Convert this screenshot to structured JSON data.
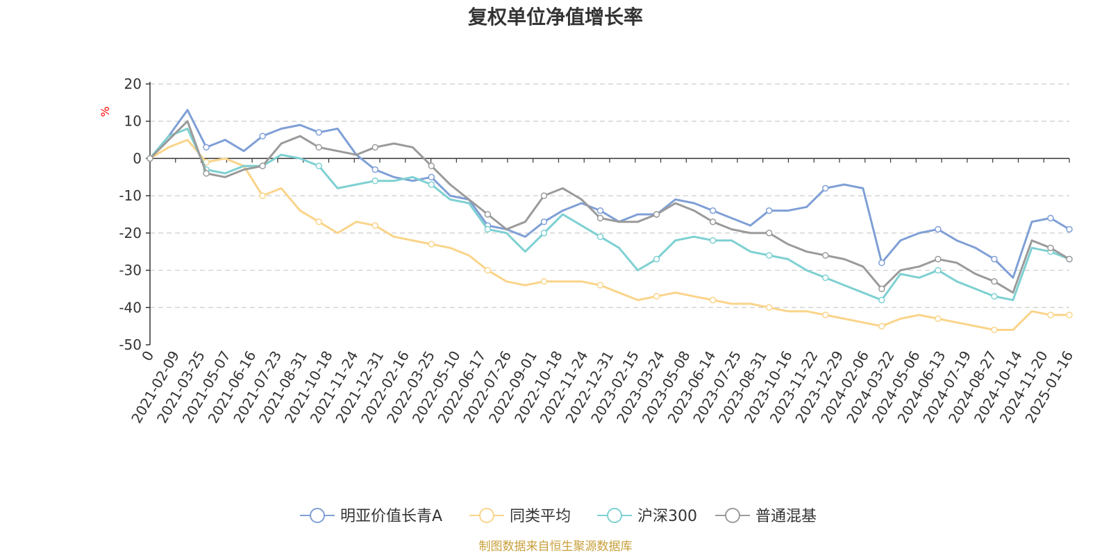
{
  "chart_data": {
    "type": "line",
    "title": "复权单位净值增长率",
    "y_unit": "%",
    "ylim": [
      -50,
      20
    ],
    "y_ticks": [
      20,
      10,
      0,
      -10,
      -20,
      -30,
      -40,
      -50
    ],
    "x_tick_labels": [
      "0",
      "2021-02-09",
      "2021-03-25",
      "2021-05-07",
      "2021-06-16",
      "2021-07-23",
      "2021-08-31",
      "2021-10-18",
      "2021-11-24",
      "2021-12-31",
      "2022-02-16",
      "2022-03-25",
      "2022-05-10",
      "2022-06-17",
      "2022-07-26",
      "2022-09-01",
      "2022-10-18",
      "2022-11-24",
      "2022-12-31",
      "2023-02-15",
      "2023-03-24",
      "2023-05-08",
      "2023-06-14",
      "2023-07-25",
      "2023-08-31",
      "2023-10-16",
      "2023-11-22",
      "2023-12-29",
      "2024-02-06",
      "2024-03-22",
      "2024-05-06",
      "2024-06-13",
      "2024-07-19",
      "2024-08-27",
      "2024-10-14",
      "2024-11-20",
      "2025-01-16"
    ],
    "grid": "horizontal-dashed",
    "legend_position": "bottom",
    "series": [
      {
        "name": "明亚价值长青A",
        "color": "#7f9fd6",
        "values": [
          0,
          6,
          13,
          3,
          5,
          2,
          6,
          8,
          9,
          7,
          8,
          1,
          -3,
          -5,
          -6,
          -5,
          -10,
          -11,
          -18,
          -19,
          -21,
          -17,
          -14,
          -12,
          -14,
          -17,
          -15,
          -15,
          -11,
          -12,
          -14,
          -16,
          -18,
          -14,
          -14,
          -13,
          -8,
          -7,
          -8,
          -28,
          -22,
          -20,
          -19,
          -22,
          -24,
          -27,
          -32,
          -17,
          -16,
          -19
        ]
      },
      {
        "name": "同类平均",
        "color": "#fad48a",
        "values": [
          0,
          3,
          5,
          -1,
          0,
          -2,
          -10,
          -8,
          -14,
          -17,
          -20,
          -17,
          -18,
          -21,
          -22,
          -23,
          -24,
          -26,
          -30,
          -33,
          -34,
          -33,
          -33,
          -33,
          -34,
          -36,
          -38,
          -37,
          -36,
          -37,
          -38,
          -39,
          -39,
          -40,
          -41,
          -41,
          -42,
          -43,
          -44,
          -45,
          -43,
          -42,
          -43,
          -44,
          -45,
          -46,
          -46,
          -41,
          -42,
          -42
        ]
      },
      {
        "name": "沪深300",
        "color": "#7ed0d2",
        "values": [
          0,
          6,
          8,
          -3,
          -4,
          -2,
          -2,
          1,
          0,
          -2,
          -8,
          -7,
          -6,
          -6,
          -5,
          -7,
          -11,
          -12,
          -19,
          -20,
          -25,
          -20,
          -15,
          -18,
          -21,
          -24,
          -30,
          -27,
          -22,
          -21,
          -22,
          -22,
          -25,
          -26,
          -27,
          -30,
          -32,
          -34,
          -36,
          -38,
          -31,
          -32,
          -30,
          -33,
          -35,
          -37,
          -38,
          -24,
          -25,
          -27
        ]
      },
      {
        "name": "普通混基",
        "color": "#9a9a9a",
        "values": [
          0,
          5,
          10,
          -4,
          -5,
          -3,
          -2,
          4,
          6,
          3,
          2,
          1,
          3,
          4,
          3,
          -2,
          -7,
          -11,
          -15,
          -19,
          -17,
          -10,
          -8,
          -11,
          -16,
          -17,
          -17,
          -15,
          -12,
          -14,
          -17,
          -19,
          -20,
          -20,
          -23,
          -25,
          -26,
          -27,
          -29,
          -35,
          -30,
          -29,
          -27,
          -28,
          -31,
          -33,
          -36,
          -22,
          -24,
          -27
        ]
      }
    ]
  },
  "footer": {
    "source": "制图数据来自恒生聚源数据库"
  }
}
